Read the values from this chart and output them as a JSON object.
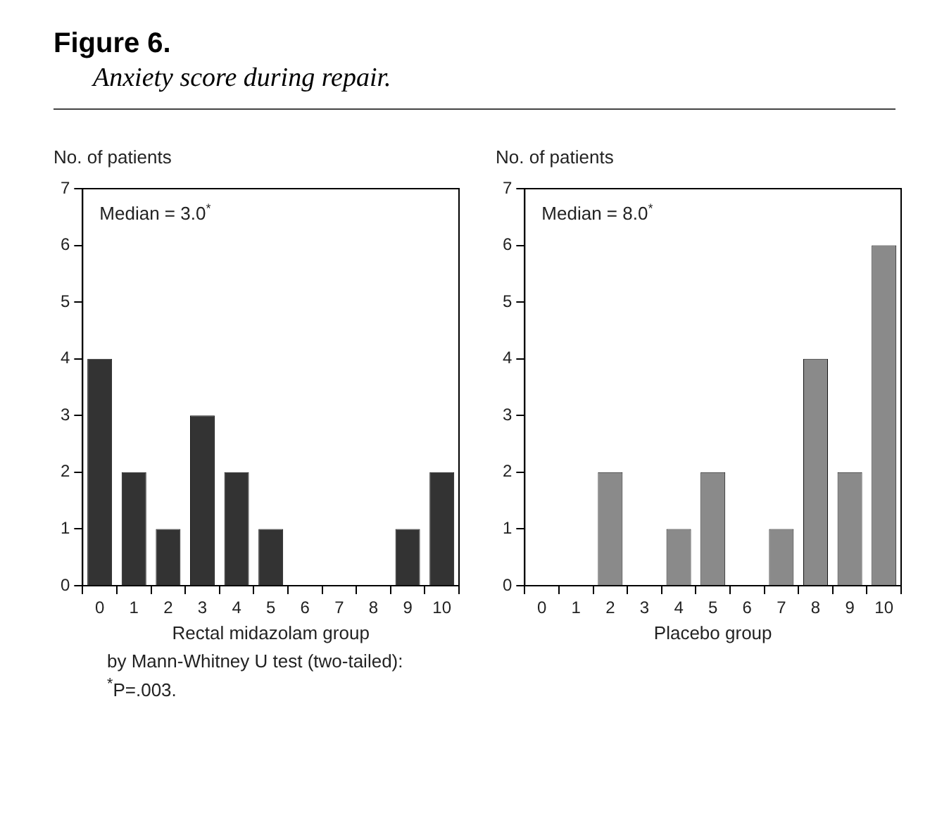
{
  "chart_data": [
    {
      "type": "bar",
      "title": "Figure 6.",
      "subtitle": "Anxiety score during repair.",
      "ylabel": "No. of patients",
      "xlabel": "Rectal midazolam group",
      "categories": [
        "0",
        "1",
        "2",
        "3",
        "4",
        "5",
        "6",
        "7",
        "8",
        "9",
        "10"
      ],
      "values": [
        4,
        2,
        1,
        3,
        2,
        1,
        0,
        0,
        0,
        1,
        2
      ],
      "color": "#333333",
      "ylim": [
        0,
        7
      ],
      "yticks": [
        0,
        1,
        2,
        3,
        4,
        5,
        6,
        7
      ],
      "grid": false,
      "legend": false,
      "annotations": [
        "Median = 3.0$^{*}$",
        "by Mann-Whitney U test (two-tailed):",
        "$^{*}$P=.003."
      ]
    },
    {
      "type": "bar",
      "ylabel": "No. of patients",
      "xlabel": "Placebo group",
      "categories": [
        "0",
        "1",
        "2",
        "3",
        "4",
        "5",
        "6",
        "7",
        "8",
        "9",
        "10"
      ],
      "values": [
        0,
        0,
        2,
        0,
        1,
        2,
        0,
        1,
        4,
        2,
        6
      ],
      "color": "#8a8a8a",
      "ylim": [
        0,
        7
      ],
      "yticks": [
        0,
        1,
        2,
        3,
        4,
        5,
        6,
        7
      ],
      "grid": false,
      "legend": false,
      "annotations": [
        "Median = 8.0$^{*}$"
      ]
    }
  ]
}
